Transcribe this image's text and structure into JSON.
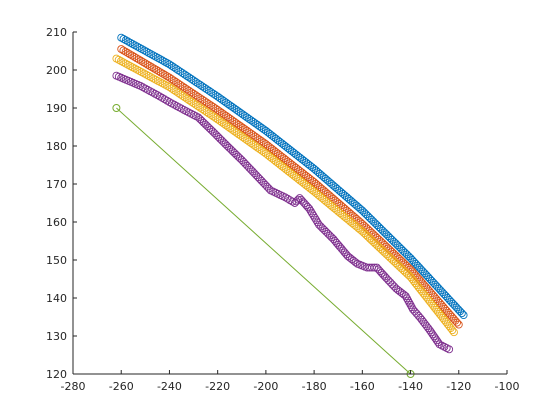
{
  "chart_data": {
    "type": "line",
    "title": "",
    "xlabel": "",
    "ylabel": "",
    "xlim": [
      -280,
      -100
    ],
    "ylim": [
      120,
      210
    ],
    "grid": false,
    "box": "left-bottom axes only",
    "x_ticks": [
      -280,
      -260,
      -240,
      -220,
      -200,
      -180,
      -160,
      -140,
      -120,
      -100
    ],
    "y_ticks": [
      120,
      130,
      140,
      150,
      160,
      170,
      180,
      190,
      200,
      210
    ],
    "x_tick_labels": [
      "-280",
      "-260",
      "-240",
      "-220",
      "-200",
      "-180",
      "-160",
      "-140",
      "-120",
      "-100"
    ],
    "y_tick_labels": [
      "120",
      "130",
      "140",
      "150",
      "160",
      "170",
      "180",
      "190",
      "200",
      "210"
    ],
    "series": [
      {
        "color": "#0072BD",
        "marker": "circle",
        "line": false,
        "x": [
          -260,
          -240,
          -220,
          -200,
          -180,
          -160,
          -140,
          -118
        ],
        "y": [
          208.5,
          201.5,
          193.0,
          184.0,
          174.0,
          163.0,
          150.5,
          135.5
        ]
      },
      {
        "color": "#D95319",
        "marker": "circle",
        "line": false,
        "x": [
          -260,
          -240,
          -220,
          -200,
          -180,
          -160,
          -140,
          -120
        ],
        "y": [
          205.5,
          198.0,
          189.5,
          180.5,
          170.5,
          159.5,
          147.5,
          133.0
        ]
      },
      {
        "color": "#EDB120",
        "marker": "circle",
        "line": false,
        "x": [
          -262,
          -240,
          -220,
          -200,
          -180,
          -160,
          -140,
          -122
        ],
        "y": [
          203.0,
          195.5,
          187.0,
          178.0,
          168.0,
          157.5,
          145.5,
          131.0
        ]
      },
      {
        "color": "#7E2F8E",
        "marker": "circle",
        "line": false,
        "x": [
          -262,
          -252,
          -245,
          -239,
          -234,
          -228,
          -222,
          -216,
          -210,
          -204,
          -198,
          -192,
          -188,
          -186,
          -182,
          -178,
          -172,
          -166,
          -162,
          -158,
          -154,
          -150,
          -146,
          -142,
          -139,
          -136,
          -132,
          -128,
          -124
        ],
        "y": [
          198.5,
          195.8,
          193.4,
          191.2,
          189.5,
          187.5,
          183.8,
          180.0,
          176.3,
          172.3,
          168.3,
          166.5,
          165.0,
          166.3,
          163.5,
          159.3,
          155.5,
          151.0,
          149.0,
          148.0,
          148.0,
          145.2,
          142.5,
          140.5,
          137.0,
          134.8,
          131.5,
          127.8,
          126.5
        ]
      },
      {
        "color": "#77AC30",
        "marker": "circle",
        "line": true,
        "x": [
          -262,
          -140
        ],
        "y": [
          190,
          120
        ]
      }
    ]
  }
}
